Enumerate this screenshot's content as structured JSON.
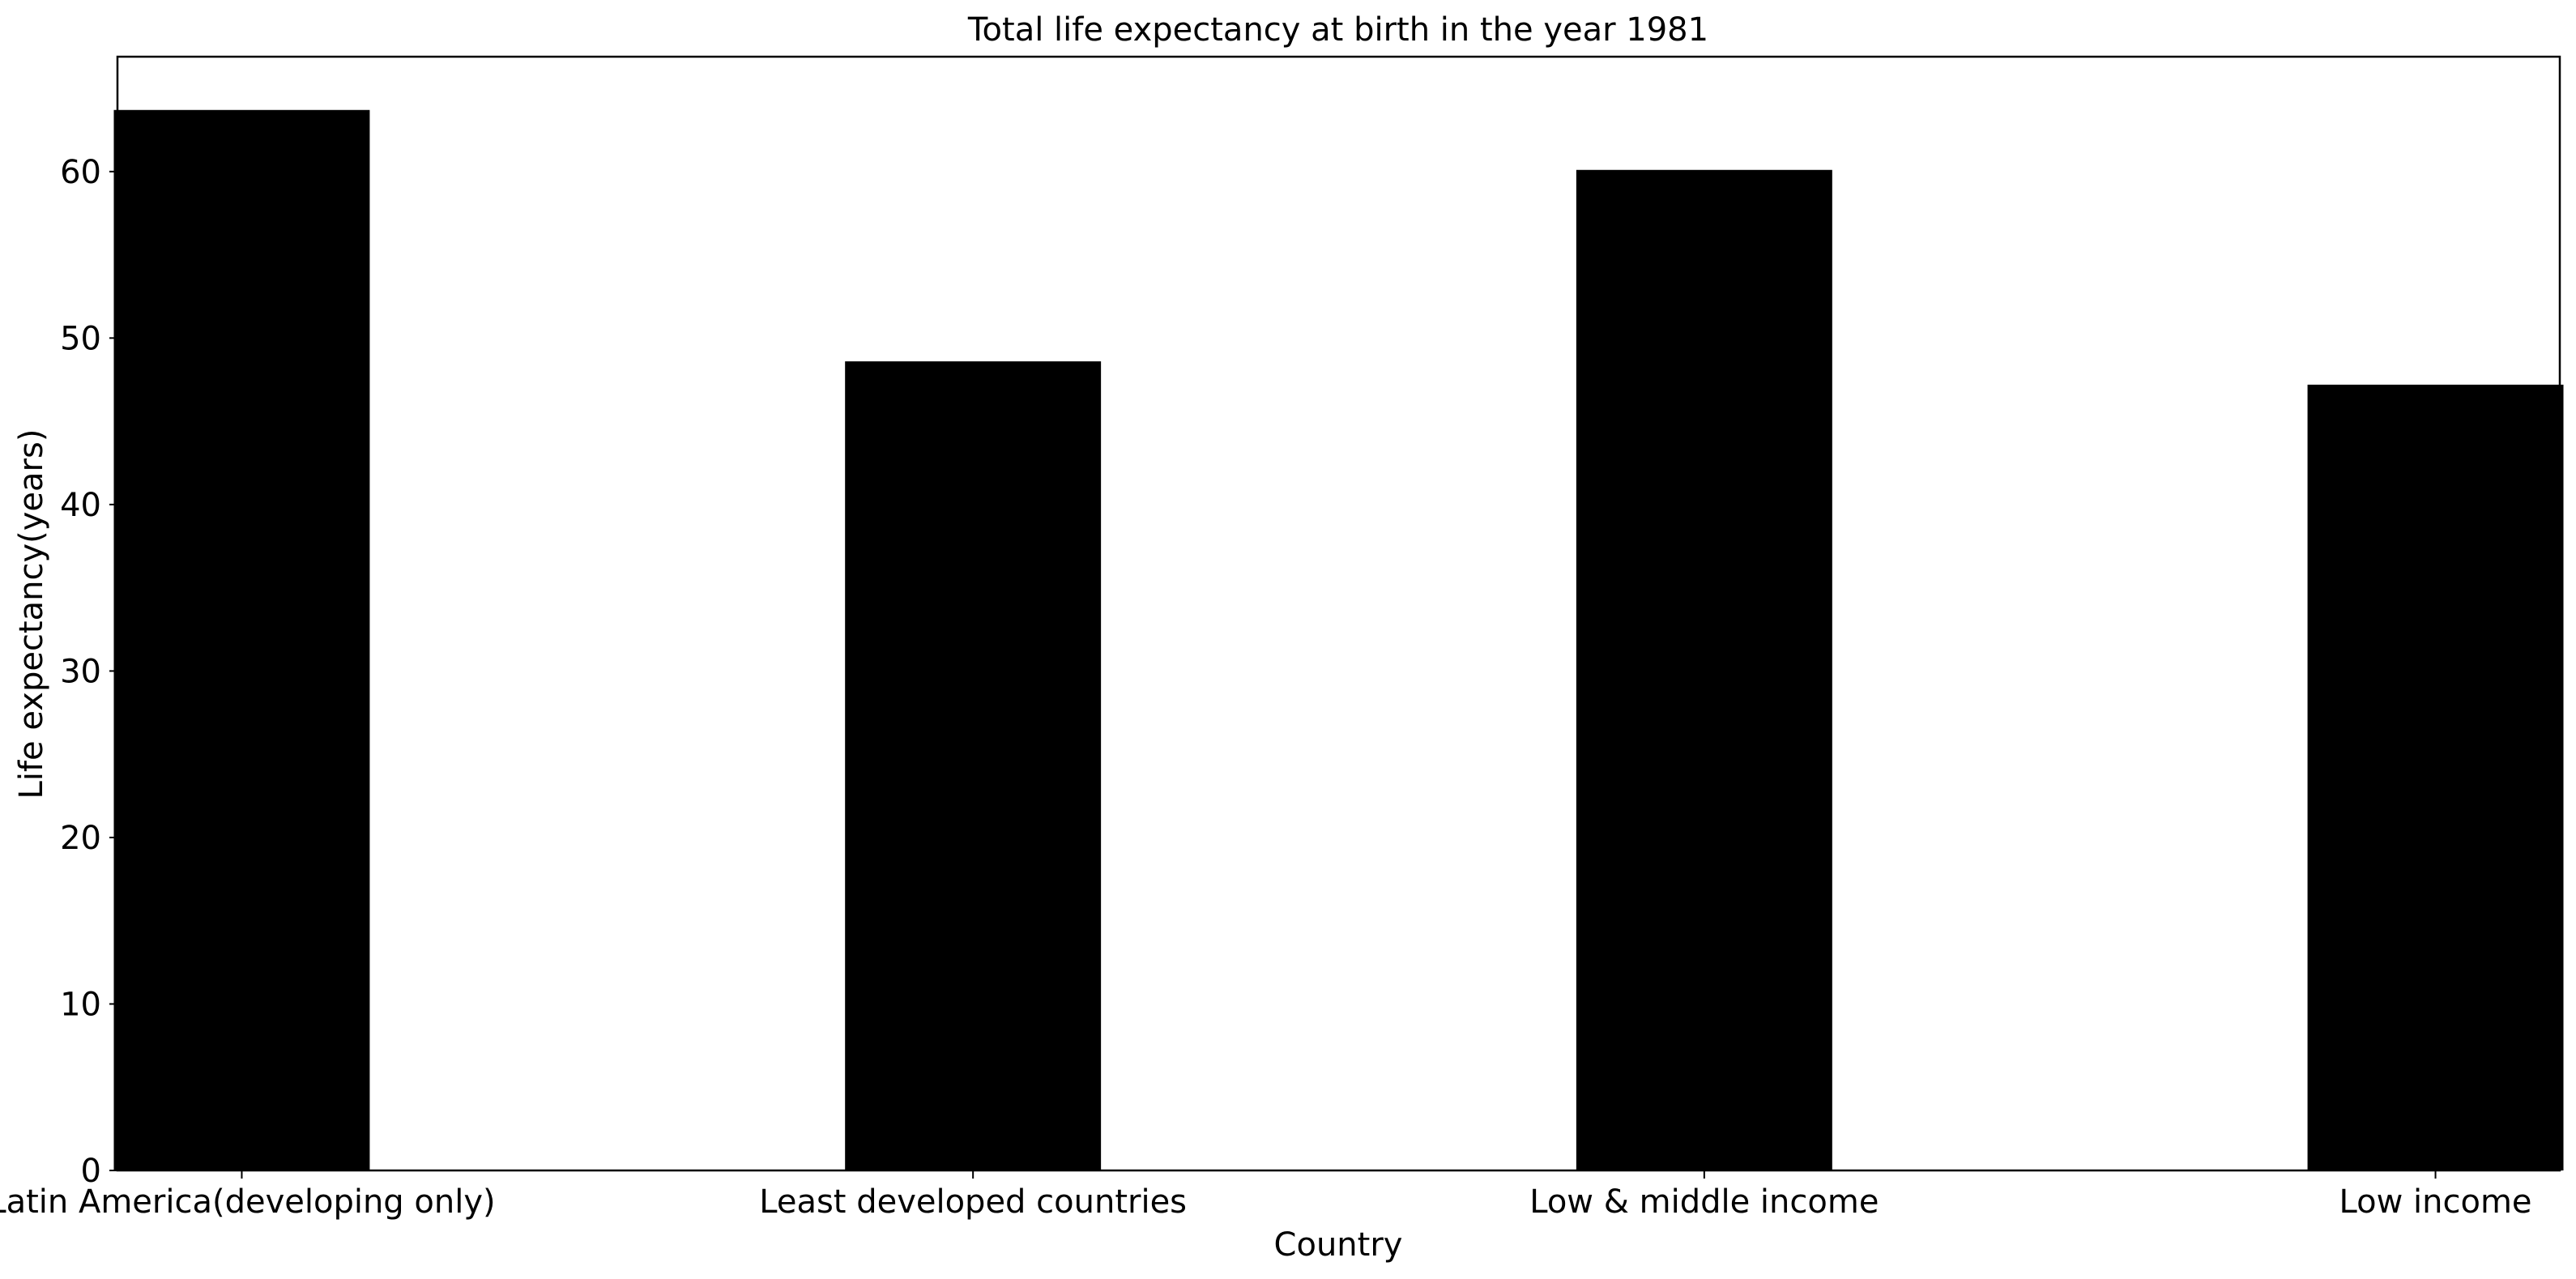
{
  "chart_data": {
    "type": "bar",
    "title": "Total life expectancy at birth in the year 1981",
    "xlabel": "Country",
    "ylabel": "Life expectancy(years)",
    "categories": [
      "Latin America(developing only)",
      "Least developed countries",
      "Low & middle income",
      "Low income"
    ],
    "values": [
      63.7,
      48.6,
      60.1,
      47.2
    ],
    "ylim": [
      0,
      66.9
    ],
    "yticks": [
      0,
      10,
      20,
      30,
      40,
      50,
      60
    ],
    "grid": false,
    "legend": "none",
    "colors": {
      "bar": "#000000",
      "axis": "#000000",
      "background": "#ffffff"
    }
  }
}
